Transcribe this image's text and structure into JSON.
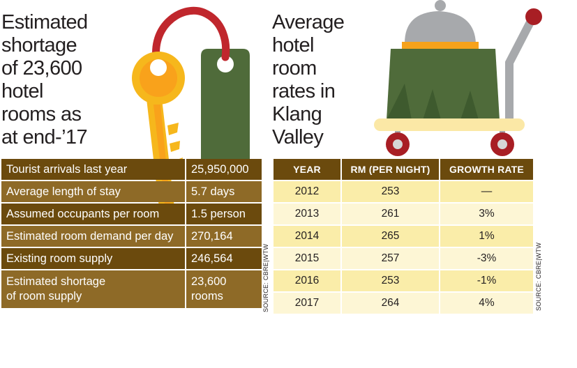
{
  "left_panel": {
    "title": "Estimated\nshortage\nof 23,600\nhotel\nrooms as\nat end-’17",
    "rows": [
      {
        "label": "Tourist arrivals last year",
        "value": "25,950,000"
      },
      {
        "label": "Average length of stay",
        "value": "5.7 days"
      },
      {
        "label": "Assumed occupants per room",
        "value": "1.5 person"
      },
      {
        "label": "Estimated room demand per day",
        "value": "270,164"
      },
      {
        "label": "Existing room supply",
        "value": "246,564"
      },
      {
        "label": "Estimated shortage\nof room supply",
        "value": "23,600\nrooms"
      }
    ],
    "source": "SOURCE: CBRE|WTW"
  },
  "right_panel": {
    "title": "Average\nhotel\nroom\nrates in\nKlang\nValley",
    "headers": [
      "YEAR",
      "RM (PER NIGHT)",
      "GROWTH RATE"
    ],
    "rows": [
      {
        "year": "2012",
        "rate": "253",
        "growth": "—"
      },
      {
        "year": "2013",
        "rate": "261",
        "growth": "3%"
      },
      {
        "year": "2014",
        "rate": "265",
        "growth": "1%"
      },
      {
        "year": "2015",
        "rate": "257",
        "growth": "-3%"
      },
      {
        "year": "2016",
        "rate": "253",
        "growth": "-1%"
      },
      {
        "year": "2017",
        "rate": "264",
        "growth": "4%"
      }
    ],
    "source": "SOURCE: CBRE|WTW"
  },
  "colors": {
    "table_dark": "#6b4a0d",
    "table_light": "#8e6a27",
    "cell_yellow": "#faeda9",
    "cell_pale": "#fdf6d5",
    "key_gold": "#f6b71c",
    "tag_green": "#4f6b3a",
    "cord_red": "#c0272d"
  },
  "icons": [
    "hotel-key-icon",
    "room-service-cart-icon"
  ]
}
